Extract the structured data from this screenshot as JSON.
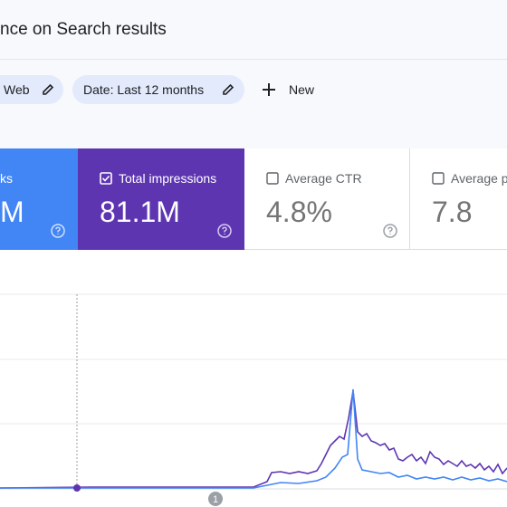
{
  "header": {
    "title": "nce on Search results"
  },
  "filters": [
    {
      "label": "Web"
    },
    {
      "label": "Date: Last 12 months"
    }
  ],
  "new_button": {
    "label": "New"
  },
  "metrics": [
    {
      "label": "ks",
      "value": "M"
    },
    {
      "label": "Total impressions",
      "value": "81.1M"
    },
    {
      "label": "Average CTR",
      "value": "4.8%"
    },
    {
      "label": "Average po",
      "value": "7.8"
    }
  ],
  "annotation": {
    "label": "1"
  }
}
